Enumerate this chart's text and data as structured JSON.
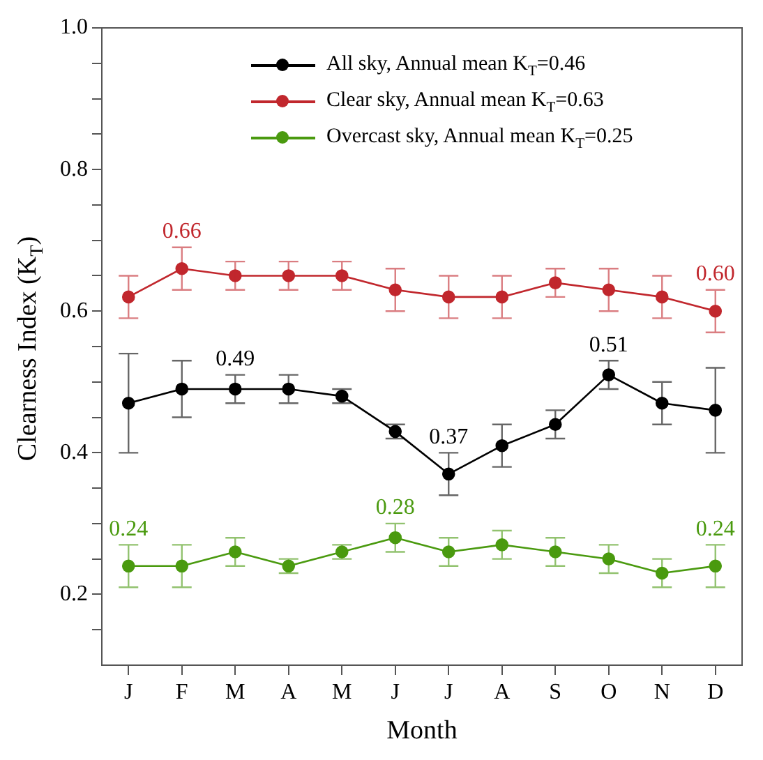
{
  "chart_data": {
    "type": "line",
    "xlabel": "Month",
    "ylabel": "Clearness Index (K$_{T}$)",
    "categories": [
      "J",
      "F",
      "M",
      "A",
      "M",
      "J",
      "J",
      "A",
      "S",
      "O",
      "N",
      "D"
    ],
    "series": [
      {
        "name": "All sky, Annual mean K$_{T}$=0.46",
        "color": "#000000",
        "values": [
          0.47,
          0.49,
          0.49,
          0.49,
          0.48,
          0.43,
          0.37,
          0.41,
          0.44,
          0.51,
          0.47,
          0.46
        ],
        "errors": [
          0.07,
          0.04,
          0.02,
          0.02,
          0.01,
          0.01,
          0.03,
          0.03,
          0.02,
          0.02,
          0.03,
          0.06
        ],
        "value_labels": [
          null,
          null,
          "0.49",
          null,
          null,
          null,
          "0.37",
          null,
          null,
          "0.51",
          null,
          null
        ]
      },
      {
        "name": "Clear sky, Annual mean K$_{T}$=0.63",
        "color": "#c1272d",
        "values": [
          0.62,
          0.66,
          0.65,
          0.65,
          0.65,
          0.63,
          0.62,
          0.62,
          0.64,
          0.63,
          0.62,
          0.6
        ],
        "errors": [
          0.03,
          0.03,
          0.02,
          0.02,
          0.02,
          0.03,
          0.03,
          0.03,
          0.02,
          0.03,
          0.03,
          0.03
        ],
        "value_labels": [
          null,
          "0.66",
          null,
          null,
          null,
          null,
          null,
          null,
          null,
          null,
          null,
          "0.60"
        ]
      },
      {
        "name": "Overcast sky, Annual mean K$_{T}$=0.25",
        "color": "#4a9a0f",
        "values": [
          0.24,
          0.24,
          0.26,
          0.24,
          0.26,
          0.28,
          0.26,
          0.27,
          0.26,
          0.25,
          0.23,
          0.24
        ],
        "errors": [
          0.03,
          0.03,
          0.02,
          0.01,
          0.01,
          0.02,
          0.02,
          0.02,
          0.02,
          0.02,
          0.02,
          0.03
        ],
        "value_labels": [
          "0.24",
          null,
          null,
          null,
          null,
          "0.28",
          null,
          null,
          null,
          null,
          null,
          "0.24"
        ]
      }
    ],
    "ylim": [
      0.1,
      1.0
    ],
    "yticks": [
      {
        "value": 0.15,
        "label": null
      },
      0.2,
      {
        "value": 0.25,
        "label": null
      },
      {
        "value": 0.3,
        "label": null
      },
      {
        "value": 0.35,
        "label": null
      },
      0.4,
      {
        "value": 0.45,
        "label": null
      },
      {
        "value": 0.5,
        "label": null
      },
      {
        "value": 0.55,
        "label": null
      },
      0.6,
      {
        "value": 0.65,
        "label": null
      },
      {
        "value": 0.7,
        "label": null
      },
      {
        "value": 0.75,
        "label": null
      },
      0.8,
      {
        "value": 0.85,
        "label": null
      },
      {
        "value": 0.9,
        "label": null
      },
      {
        "value": 0.95,
        "label": null
      },
      {
        "value": 1.0,
        "label": "1.0"
      }
    ],
    "grid": false,
    "legend": "top right",
    "marker": "circle",
    "line_style": "solid"
  }
}
